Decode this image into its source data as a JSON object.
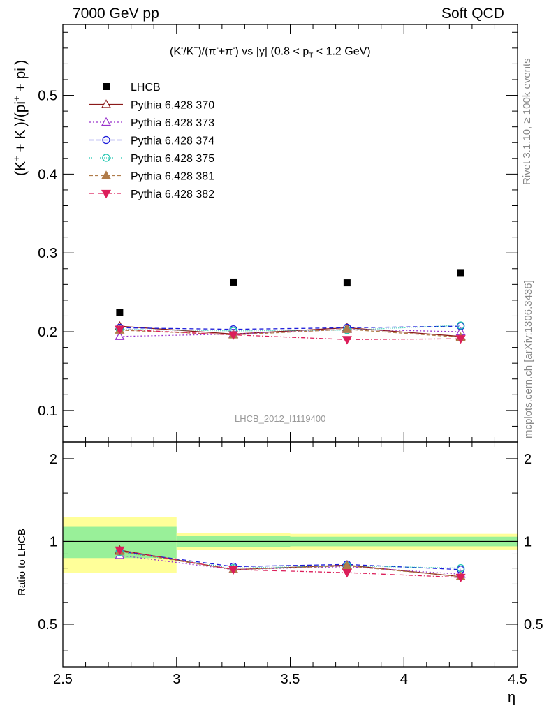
{
  "header": {
    "left": "7000 GeV pp",
    "right": "Soft QCD"
  },
  "side": {
    "rivet": "Rivet 3.1.10, ≥ 100k events",
    "mcplots": "mcplots.cern.ch [arXiv:1306.3436]"
  },
  "chart_data": {
    "type": "scatter",
    "title": "(K⁻/K⁺)/(π⁻+π⁻) vs |y| (0.8 < p_T < 1.2 GeV)",
    "title_parts": {
      "a": "(K",
      "a_sup": "-",
      "b": "/K",
      "b_sup": "+",
      "c": ")/(π",
      "c_sup": "-",
      "d": "+π",
      "d_sup": "-",
      "e": ") vs |y| (0.8 < p",
      "e_sub": "T",
      "f": " < 1.2 GeV)"
    },
    "ylabel_parts": {
      "a": "(K",
      "a_sup": "+",
      "b": " + K",
      "b_sup": "-",
      "c": ")/(pi",
      "c_sup": "+",
      "d": " + pi",
      "d_sup": "-",
      "e": ")"
    },
    "ratio_ylabel": "Ratio to LHCB",
    "xlabel": "η",
    "analysis_label": "LHCB_2012_I1119400",
    "xlim": [
      2.5,
      4.5
    ],
    "ylim": [
      0.06,
      0.59
    ],
    "ratio_ylim": [
      0.35,
      2.3
    ],
    "x_ticks": [
      "2.5",
      "3",
      "3.5",
      "4",
      "4.5"
    ],
    "y_ticks": [
      "0.1",
      "0.2",
      "0.3",
      "0.4",
      "0.5"
    ],
    "ratio_y_ticks": [
      "0.5",
      "1",
      "2"
    ],
    "x": [
      2.75,
      3.25,
      3.75,
      4.25
    ],
    "bins": [
      [
        2.5,
        3.0
      ],
      [
        3.0,
        3.5
      ],
      [
        3.5,
        4.0
      ],
      [
        4.0,
        4.5
      ]
    ],
    "data": {
      "name": "LHCB",
      "values": [
        0.224,
        0.263,
        0.262,
        0.275
      ],
      "band_stat": [
        0.13,
        0.045,
        0.04,
        0.04
      ],
      "band_total": [
        0.23,
        0.07,
        0.065,
        0.065
      ],
      "color": "#000000"
    },
    "series": [
      {
        "name": "Pythia 6.428 370",
        "values": [
          0.207,
          0.197,
          0.205,
          0.194
        ],
        "ratio": [
          0.93,
          0.79,
          0.82,
          0.745
        ],
        "color": "#8b1a1a",
        "marker": "triangle-open",
        "dash": ""
      },
      {
        "name": "Pythia 6.428 373",
        "values": [
          0.194,
          0.197,
          0.203,
          0.2
        ],
        "ratio": [
          0.89,
          0.79,
          0.81,
          0.76
        ],
        "color": "#9932cc",
        "marker": "triangle-open",
        "dash": "2,3"
      },
      {
        "name": "Pythia 6.428 374",
        "values": [
          0.205,
          0.203,
          0.205,
          0.207
        ],
        "ratio": [
          0.92,
          0.81,
          0.825,
          0.79
        ],
        "color": "#1c1cd9",
        "marker": "circle-open",
        "dash": "6,4"
      },
      {
        "name": "Pythia 6.428 375",
        "values": [
          0.203,
          0.201,
          0.202,
          0.208
        ],
        "ratio": [
          0.915,
          0.8,
          0.815,
          0.8
        ],
        "color": "#20c7b0",
        "marker": "circle-open",
        "dash": "1,2"
      },
      {
        "name": "Pythia 6.428 381",
        "values": [
          0.202,
          0.196,
          0.203,
          0.193
        ],
        "ratio": [
          0.92,
          0.79,
          0.815,
          0.745
        ],
        "color": "#b07c4a",
        "marker": "triangle-filled",
        "dash": "5,3"
      },
      {
        "name": "Pythia 6.428 382",
        "values": [
          0.203,
          0.196,
          0.19,
          0.191
        ],
        "ratio": [
          0.93,
          0.79,
          0.77,
          0.74
        ],
        "color": "#dc1e5a",
        "marker": "triangle-down-filled",
        "dash": "6,3,1,3"
      }
    ]
  }
}
